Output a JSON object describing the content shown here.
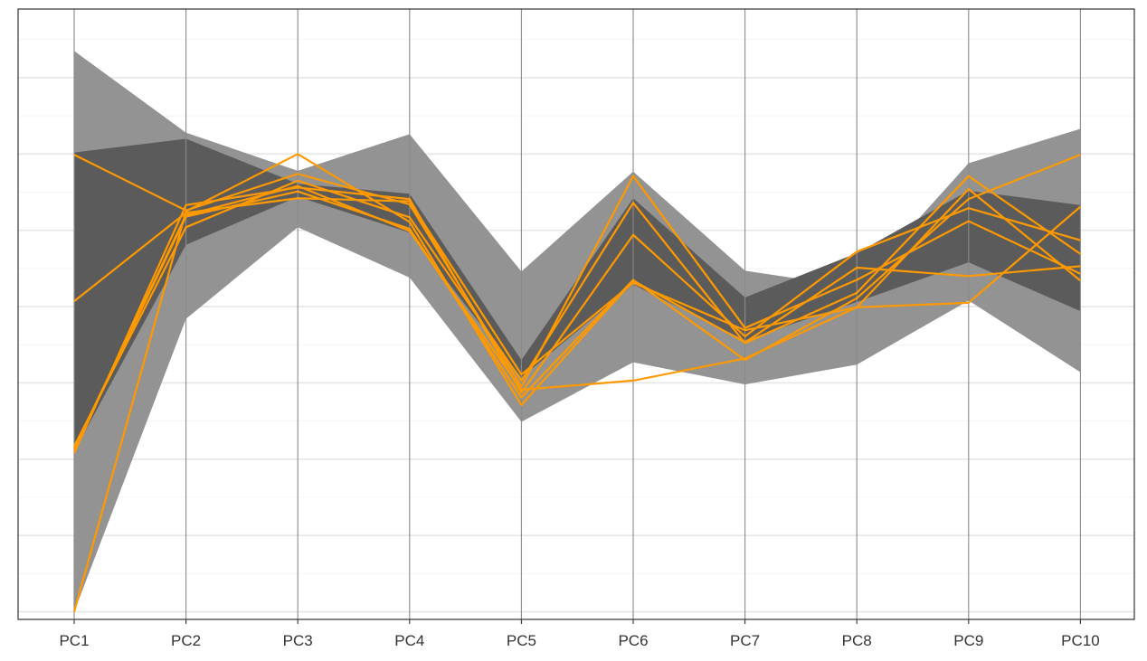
{
  "chart_data": {
    "type": "line",
    "subtype": "parallel-coordinates",
    "categories": [
      "PC1",
      "PC2",
      "PC3",
      "PC4",
      "PC5",
      "PC6",
      "PC7",
      "PC8",
      "PC9",
      "PC10"
    ],
    "ylim": [
      0,
      8
    ],
    "y_ticks": [
      0.1,
      1.1,
      2.1,
      3.1,
      4.1,
      5.1,
      6.1,
      7.1
    ],
    "y_tick_labels_shown": false,
    "grid": true,
    "bands": [
      {
        "name": "",
        "color": "#939393",
        "upper": [
          7.45,
          6.38,
          5.88,
          6.36,
          4.56,
          5.87,
          4.57,
          4.35,
          5.98,
          6.43
        ],
        "lower": [
          0.1,
          3.94,
          5.14,
          4.48,
          2.59,
          3.37,
          3.08,
          3.34,
          4.18,
          3.24
        ]
      },
      {
        "name": "",
        "color": "#5b5b5b",
        "upper": [
          6.12,
          6.3,
          5.71,
          5.58,
          3.4,
          5.52,
          4.22,
          4.8,
          5.62,
          5.43
        ],
        "lower": [
          2.2,
          4.91,
          5.54,
          5.07,
          3.17,
          4.39,
          3.66,
          4.16,
          4.68,
          4.04
        ]
      }
    ],
    "line_color": "#ff9900",
    "series": [
      {
        "values": [
          6.09,
          5.36,
          5.84,
          5.44,
          3.05,
          5.81,
          3.82,
          4.45,
          5.22,
          4.53
        ]
      },
      {
        "values": [
          2.18,
          5.43,
          5.66,
          5.51,
          2.97,
          5.04,
          3.71,
          4.82,
          5.39,
          4.97
        ]
      },
      {
        "values": [
          2.27,
          5.14,
          5.75,
          5.27,
          3.13,
          5.46,
          3.62,
          4.28,
          5.81,
          4.79
        ]
      },
      {
        "values": [
          4.17,
          5.33,
          5.52,
          5.48,
          3.21,
          4.41,
          3.79,
          4.09,
          5.64,
          4.44
        ]
      },
      {
        "values": [
          0.1,
          5.35,
          6.1,
          5.21,
          2.81,
          4.44,
          3.63,
          4.61,
          4.5,
          4.63
        ]
      },
      {
        "values": [
          2.23,
          5.28,
          5.61,
          5.12,
          2.91,
          4.45,
          3.4,
          4.21,
          5.51,
          6.09
        ]
      },
      {
        "values": [
          2.24,
          5.3,
          5.68,
          5.09,
          3.01,
          3.13,
          3.42,
          4.09,
          4.15,
          5.41
        ]
      }
    ]
  }
}
